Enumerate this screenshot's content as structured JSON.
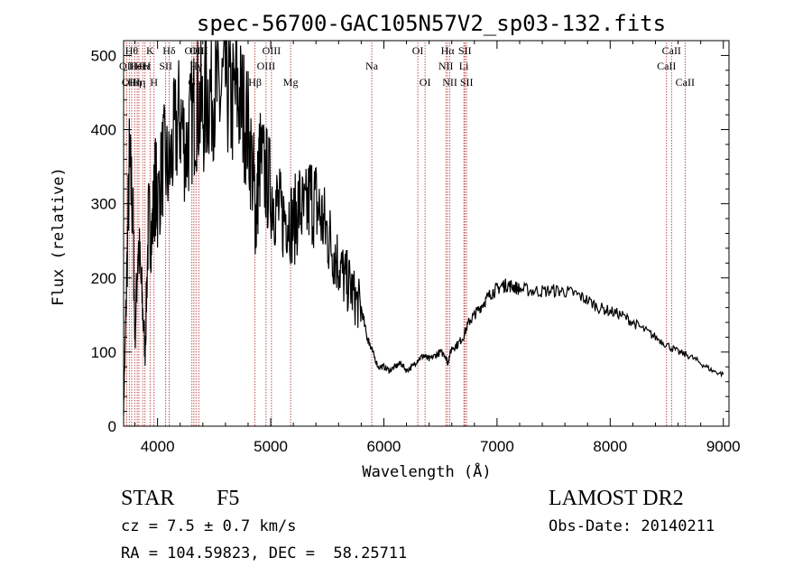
{
  "chart_data": {
    "type": "line",
    "title": "spec-56700-GAC105N57V2_sp03-132.fits",
    "xlabel": "Wavelength (Å)",
    "ylabel": "Flux (relative)",
    "xlim": [
      3700,
      9050
    ],
    "ylim": [
      0,
      520
    ],
    "xticks": [
      4000,
      5000,
      6000,
      7000,
      8000,
      9000
    ],
    "yticks": [
      0,
      100,
      200,
      300,
      400,
      500
    ],
    "line_color": "#000000",
    "marker_color": "#b22222",
    "series": [
      {
        "x": [
          3700,
          3720,
          3750,
          3780,
          3800,
          3830,
          3860,
          3890,
          3920,
          3950,
          3980,
          4000,
          4050,
          4100,
          4150,
          4200,
          4250,
          4300,
          4350,
          4400,
          4450,
          4500,
          4550,
          4600,
          4650,
          4700,
          4750,
          4800,
          4850,
          4870,
          4900,
          4950,
          5000,
          5050,
          5100,
          5150,
          5200,
          5250,
          5300,
          5350,
          5400,
          5450,
          5500,
          5550,
          5600,
          5650,
          5700,
          5750,
          5800,
          5850,
          5880,
          5900,
          5950,
          6000,
          6050,
          6100,
          6150,
          6200,
          6250,
          6300,
          6350,
          6400,
          6450,
          6500,
          6550,
          6563,
          6600,
          6650,
          6700,
          6750,
          6800,
          6850,
          6900,
          6950,
          7000,
          7050,
          7100,
          7150,
          7200,
          7300,
          7400,
          7500,
          7600,
          7700,
          7800,
          7900,
          8000,
          8100,
          8200,
          8300,
          8400,
          8500,
          8600,
          8700,
          8800,
          8900,
          9000
        ],
        "y": [
          20,
          150,
          350,
          300,
          120,
          250,
          180,
          100,
          280,
          260,
          330,
          300,
          360,
          340,
          390,
          420,
          370,
          410,
          440,
          420,
          450,
          460,
          440,
          470,
          430,
          450,
          430,
          400,
          330,
          270,
          360,
          340,
          320,
          300,
          280,
          290,
          270,
          300,
          280,
          310,
          300,
          280,
          260,
          240,
          220,
          200,
          190,
          170,
          160,
          120,
          110,
          100,
          80,
          80,
          75,
          80,
          85,
          75,
          80,
          90,
          95,
          90,
          95,
          100,
          95,
          85,
          105,
          110,
          120,
          140,
          150,
          160,
          170,
          180,
          185,
          190,
          190,
          188,
          185,
          183,
          182,
          183,
          182,
          178,
          170,
          160,
          155,
          150,
          140,
          130,
          120,
          110,
          100,
          95,
          85,
          75,
          70
        ]
      }
    ],
    "lines": [
      {
        "x": 3727,
        "label": "OII",
        "row": 2
      },
      {
        "x": 3750,
        "label": "OII",
        "row": 3
      },
      {
        "x": 3771,
        "label": "Hθ",
        "row": 1
      },
      {
        "x": 3798,
        "label": "Hη",
        "row": 3
      },
      {
        "x": 3820,
        "label": "HeI",
        "row": 2
      },
      {
        "x": 3835,
        "label": "Hη",
        "row": 3
      },
      {
        "x": 3869,
        "label": "HeI",
        "row": 2
      },
      {
        "x": 3889,
        "label": "Hε",
        "row": 2
      },
      {
        "x": 3934,
        "label": "K",
        "row": 1
      },
      {
        "x": 3969,
        "label": "H",
        "row": 3
      },
      {
        "x": 4072,
        "label": "SII",
        "row": 2
      },
      {
        "x": 4102,
        "label": "Hδ",
        "row": 1
      },
      {
        "x": 4304,
        "label": "G",
        "row": 3
      },
      {
        "x": 4321,
        "label": "OIII",
        "row": 1
      },
      {
        "x": 4340,
        "label": "Hγ",
        "row": 2
      },
      {
        "x": 4364,
        "label": "OIII",
        "row": 1
      },
      {
        "x": 4861,
        "label": "Hβ",
        "row": 3
      },
      {
        "x": 4959,
        "label": "OIII",
        "row": 2
      },
      {
        "x": 5007,
        "label": "OIII",
        "row": 1
      },
      {
        "x": 5176,
        "label": "Mg",
        "row": 3
      },
      {
        "x": 5893,
        "label": "Na",
        "row": 2
      },
      {
        "x": 6300,
        "label": "OI",
        "row": 1
      },
      {
        "x": 6364,
        "label": "OI",
        "row": 3
      },
      {
        "x": 6548,
        "label": "NII",
        "row": 2
      },
      {
        "x": 6563,
        "label": "Hα",
        "row": 1
      },
      {
        "x": 6583,
        "label": "NII",
        "row": 3
      },
      {
        "x": 6707,
        "label": "Li",
        "row": 2
      },
      {
        "x": 6716,
        "label": "SII",
        "row": 1
      },
      {
        "x": 6731,
        "label": "SII",
        "row": 3
      },
      {
        "x": 8498,
        "label": "CaII",
        "row": 2
      },
      {
        "x": 8542,
        "label": "CaII",
        "row": 1
      },
      {
        "x": 8662,
        "label": "CaII",
        "row": 3
      }
    ]
  },
  "info": {
    "class_label": "STAR",
    "subclass": "F5",
    "survey": "LAMOST DR2",
    "cz_label": "cz = 7.5 ± 0.7 km/s",
    "obs_date": "Obs-Date: 20140211",
    "coords": "RA = 104.59823, DEC =  58.25711"
  }
}
